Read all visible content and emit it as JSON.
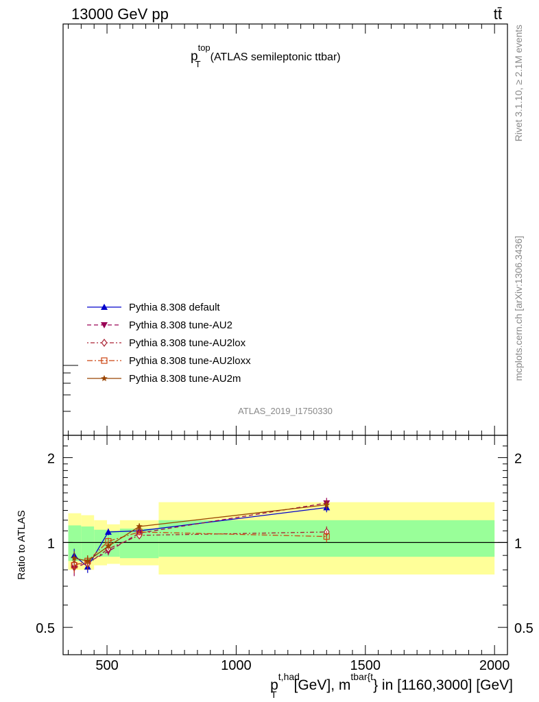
{
  "header": {
    "energy": "13000 GeV pp",
    "process": "tt̄",
    "side_rivet": "Rivet 3.1.10, ≥ 2.1M events",
    "side_mcplots": "mcplots.cern.ch [arXiv:1306.3436]",
    "analysis_id": "ATLAS_2019_I1750330"
  },
  "chart_data": {
    "type": "line",
    "title": {
      "main": "p",
      "sup": "top",
      "sub": "T",
      "rest": "(ATLAS semileptonic ttbar)"
    },
    "xlabel": {
      "p": "p",
      "sup1": "t,had",
      "sub1": "T",
      "mid": "[GeV], m",
      "sup2": "tbar{t",
      "end": "} in [1160,3000] [GeV]"
    },
    "ylabel": "Ratio to ATLAS",
    "xlim": [
      330,
      2050
    ],
    "ylim_ratio": [
      0.4,
      2.4
    ],
    "ratio_log_scale": true,
    "x_ticks": [
      500,
      1000,
      1500,
      2000
    ],
    "x_tick_labels": [
      "500",
      "1000",
      "1500",
      "2000"
    ],
    "y_ticks": [
      0.5,
      1,
      2
    ],
    "y_tick_labels": [
      "0.5",
      "1",
      "2"
    ],
    "reference_line": 1,
    "legend_position": "bottom-left of upper panel",
    "bands": {
      "stat_color": "#99ff99",
      "total_color": "#ffff99",
      "bins": [
        {
          "lo": 350,
          "hi": 400,
          "stat": [
            0.86,
            1.15
          ],
          "total": [
            0.8,
            1.27
          ]
        },
        {
          "lo": 400,
          "hi": 450,
          "stat": [
            0.86,
            1.14
          ],
          "total": [
            0.8,
            1.25
          ]
        },
        {
          "lo": 450,
          "hi": 500,
          "stat": [
            0.89,
            1.11
          ],
          "total": [
            0.83,
            1.2
          ]
        },
        {
          "lo": 500,
          "hi": 550,
          "stat": [
            0.89,
            1.1
          ],
          "total": [
            0.84,
            1.16
          ]
        },
        {
          "lo": 550,
          "hi": 700,
          "stat": [
            0.88,
            1.12
          ],
          "total": [
            0.83,
            1.2
          ]
        },
        {
          "lo": 700,
          "hi": 2000,
          "stat": [
            0.89,
            1.2
          ],
          "total": [
            0.77,
            1.39
          ]
        }
      ]
    },
    "series": [
      {
        "name": "Pythia 8.308 default",
        "color": "#0000cc",
        "dash": "",
        "marker": "triangle-up",
        "x": [
          373,
          425,
          505,
          625,
          1350
        ],
        "y": [
          0.9,
          0.82,
          1.09,
          1.1,
          1.33
        ],
        "err": [
          0.05,
          0.04,
          0.03,
          0.03,
          0.05
        ]
      },
      {
        "name": "Pythia 8.308 tune-AU2",
        "color": "#990055",
        "dash": "6,4",
        "marker": "triangle-down",
        "x": [
          373,
          425,
          505,
          625,
          1350
        ],
        "y": [
          0.81,
          0.85,
          0.93,
          1.08,
          1.38
        ],
        "err": [
          0.05,
          0.04,
          0.03,
          0.03,
          0.06
        ]
      },
      {
        "name": "Pythia 8.308 tune-AU2lox",
        "color": "#aa2233",
        "dash": "2,3,6,3",
        "marker": "diamond-open",
        "x": [
          373,
          425,
          505,
          625,
          1350
        ],
        "y": [
          0.84,
          0.84,
          0.95,
          1.06,
          1.09
        ],
        "err": [
          0.05,
          0.04,
          0.03,
          0.03,
          0.05
        ]
      },
      {
        "name": "Pythia 8.308 tune-AU2loxx",
        "color": "#cc4411",
        "dash": "8,3,2,3",
        "marker": "square-open",
        "x": [
          373,
          425,
          505,
          625,
          1350
        ],
        "y": [
          0.83,
          0.86,
          1.01,
          1.09,
          1.05
        ],
        "err": [
          0.05,
          0.04,
          0.03,
          0.03,
          0.05
        ]
      },
      {
        "name": "Pythia 8.308 tune-AU2m",
        "color": "#994400",
        "dash": "",
        "marker": "star",
        "x": [
          373,
          425,
          505,
          625,
          1350
        ],
        "y": [
          0.88,
          0.86,
          0.97,
          1.14,
          1.36
        ],
        "err": [
          0.05,
          0.04,
          0.03,
          0.03,
          0.05
        ]
      }
    ]
  }
}
